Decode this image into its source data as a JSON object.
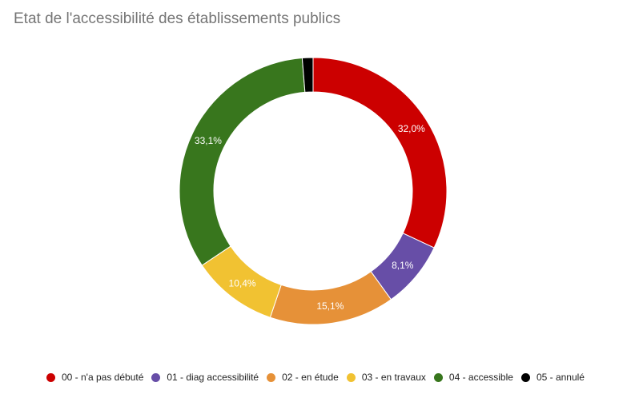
{
  "chart_data": {
    "type": "pie",
    "title": "Etat de l'accessibilité des établissements publics",
    "legend_position": "bottom",
    "slices": [
      {
        "label": "00 - n'a pas débuté",
        "value": 32.0,
        "value_label": "32,0%",
        "color": "#cc0000"
      },
      {
        "label": "01 - diag accessibilité",
        "value": 8.1,
        "value_label": "8,1%",
        "color": "#674ea7"
      },
      {
        "label": "02 - en étude",
        "value": 15.1,
        "value_label": "15,1%",
        "color": "#e69138"
      },
      {
        "label": "03 - en travaux",
        "value": 10.4,
        "value_label": "10,4%",
        "color": "#f1c232"
      },
      {
        "label": "04 - accessible",
        "value": 33.1,
        "value_label": "33,1%",
        "color": "#38761d"
      },
      {
        "label": "05 - annulé",
        "value": 1.3,
        "value_label": "",
        "color": "#000000"
      }
    ]
  }
}
